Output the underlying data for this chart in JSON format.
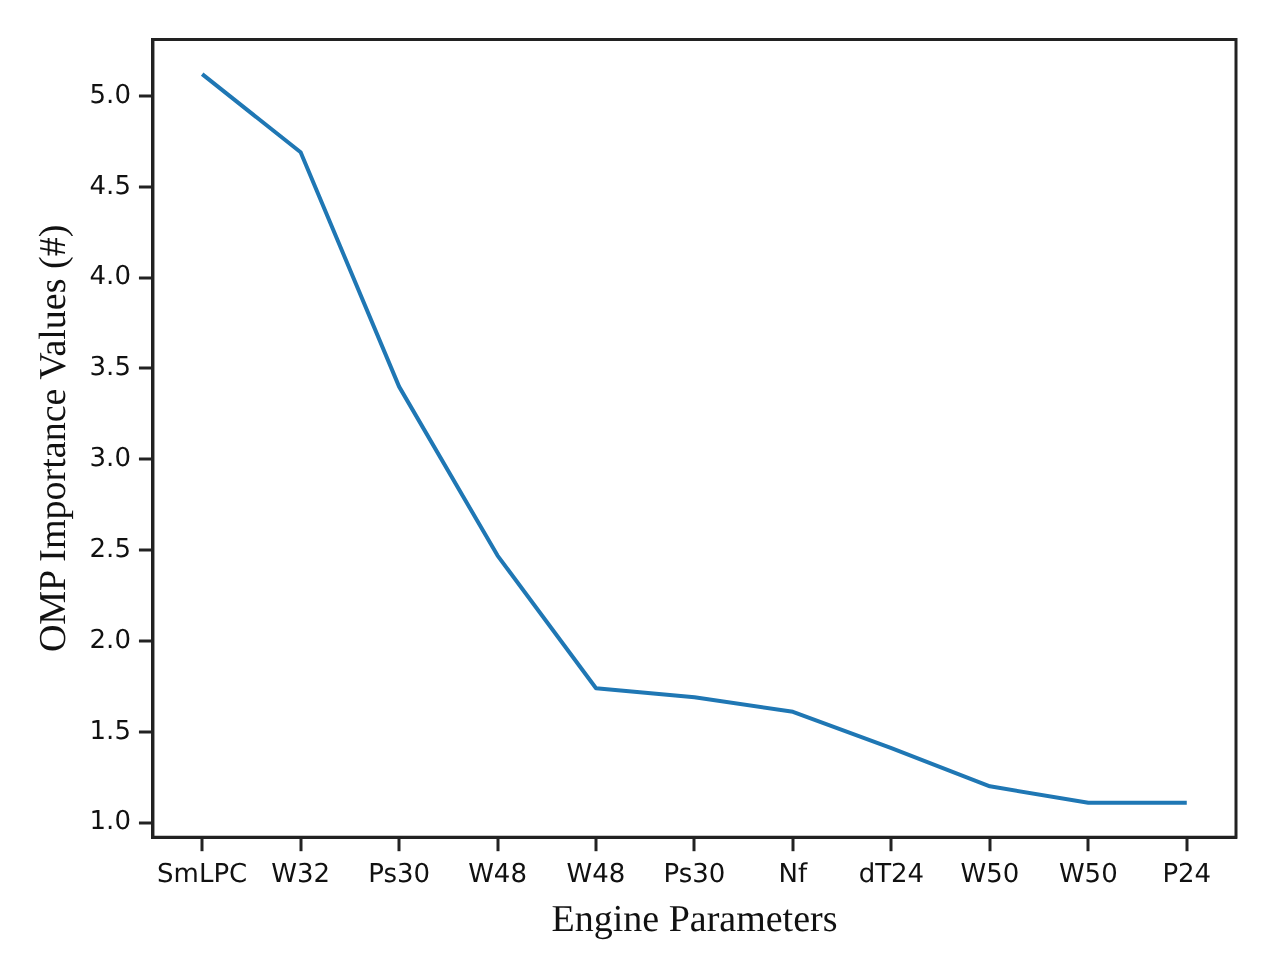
{
  "chart_data": {
    "type": "line",
    "xlabel": "Engine Parameters",
    "ylabel": "OMP Importance Values (#)",
    "categories": [
      "SmLPC",
      "W32",
      "Ps30",
      "W48",
      "W48",
      "Ps30",
      "Nf",
      "dT24",
      "W50",
      "W50",
      "P24"
    ],
    "series": [
      {
        "color": "#1f77b4",
        "values": [
          5.12,
          4.69,
          3.4,
          2.47,
          1.74,
          1.69,
          1.61,
          1.41,
          1.2,
          1.11,
          1.11
        ]
      }
    ],
    "ylim": [
      0.92,
      5.31
    ],
    "yticks": [
      {
        "value": 1,
        "label": "1.0"
      },
      1.5,
      {
        "value": 2,
        "label": "2.0"
      },
      2.5,
      {
        "value": 3,
        "label": "3.0"
      },
      3.5,
      {
        "value": 4,
        "label": "4.0"
      },
      4.5,
      {
        "value": 5,
        "label": "5.0"
      }
    ],
    "grid": false,
    "legend": false,
    "marker": "none",
    "line_style": "solid"
  }
}
